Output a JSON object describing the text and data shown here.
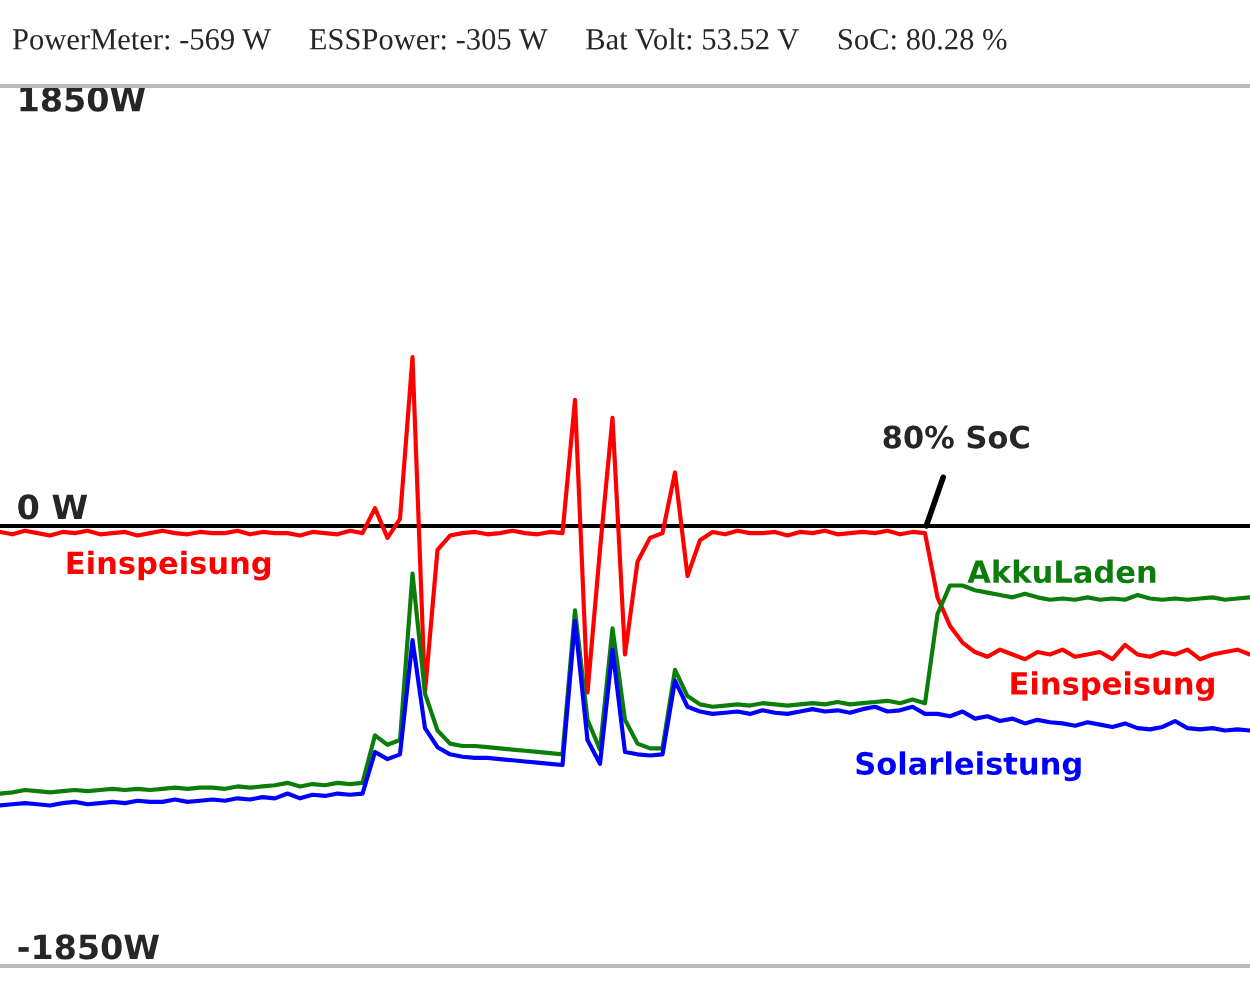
{
  "chart_data": {
    "type": "line",
    "title": "PowerMeter: -569 W     ESSPower: -305 W     Bat Volt: 53.52 V     SoC: 80.28 %",
    "categories": [
      null,
      null,
      null,
      null,
      null,
      null,
      null,
      null,
      null,
      null,
      null,
      null,
      null,
      null,
      null,
      null,
      null,
      null,
      null,
      null,
      null,
      null,
      null,
      null,
      null,
      null,
      null,
      null,
      null,
      null,
      null,
      null,
      null,
      null,
      null,
      null,
      null,
      null,
      null,
      null,
      null,
      null,
      null,
      null,
      null,
      null,
      null,
      null,
      null,
      null,
      null,
      null,
      null,
      null,
      null,
      null,
      null,
      null,
      null,
      null,
      null,
      null,
      null,
      null,
      null,
      null,
      null,
      null,
      null,
      null,
      null,
      null,
      null,
      null,
      null,
      null,
      null,
      null,
      null,
      null,
      null,
      null,
      null,
      null,
      null,
      null,
      null,
      null,
      null,
      null,
      null,
      null,
      null,
      null,
      null,
      null,
      null,
      null,
      null,
      null,
      null
    ],
    "series": [
      {
        "name": "Einspeisung",
        "color": "#ff0000",
        "values": [
          -25,
          -35,
          -20,
          -30,
          -40,
          -25,
          -30,
          -20,
          -35,
          -30,
          -25,
          -40,
          -30,
          -20,
          -30,
          -35,
          -25,
          -30,
          -30,
          -20,
          -35,
          -25,
          -30,
          -30,
          -40,
          -25,
          -30,
          -35,
          -20,
          -30,
          75,
          -50,
          30,
          710,
          -700,
          -100,
          -40,
          -30,
          -25,
          -35,
          -30,
          -20,
          -30,
          -35,
          -25,
          -30,
          530,
          -700,
          -100,
          455,
          -540,
          -150,
          -50,
          -30,
          225,
          -210,
          -60,
          -25,
          -35,
          -20,
          -30,
          -30,
          -25,
          -40,
          -25,
          -30,
          -20,
          -35,
          -30,
          -25,
          -30,
          -20,
          -35,
          -25,
          -30,
          -300,
          -420,
          -490,
          -530,
          -550,
          -520,
          -540,
          -560,
          -530,
          -540,
          -520,
          -550,
          -540,
          -530,
          -560,
          -500,
          -540,
          -550,
          -530,
          -540,
          -520,
          -560,
          -540,
          -530,
          -520,
          -540
        ]
      },
      {
        "name": "AkkuLaden",
        "color": "#0a7d0a",
        "values": [
          -1125,
          -1120,
          -1110,
          -1115,
          -1120,
          -1115,
          -1110,
          -1115,
          -1110,
          -1105,
          -1110,
          -1105,
          -1110,
          -1105,
          -1100,
          -1105,
          -1100,
          -1100,
          -1105,
          -1095,
          -1100,
          -1095,
          -1090,
          -1080,
          -1095,
          -1085,
          -1090,
          -1080,
          -1085,
          -1080,
          -880,
          -920,
          -900,
          -200,
          -705,
          -860,
          -915,
          -925,
          -925,
          -930,
          -935,
          -940,
          -945,
          -950,
          -955,
          -960,
          -355,
          -815,
          -940,
          -430,
          -815,
          -915,
          -935,
          -935,
          -605,
          -715,
          -750,
          -760,
          -755,
          -750,
          -755,
          -745,
          -750,
          -755,
          -750,
          -745,
          -750,
          -740,
          -750,
          -745,
          -740,
          -735,
          -745,
          -730,
          -745,
          -370,
          -250,
          -250,
          -270,
          -280,
          -290,
          -300,
          -285,
          -300,
          -310,
          -305,
          -310,
          -300,
          -310,
          -305,
          -310,
          -290,
          -305,
          -310,
          -305,
          -310,
          -305,
          -300,
          -310,
          -305,
          -300
        ]
      },
      {
        "name": "Solarleistung",
        "color": "#0000ff",
        "values": [
          -1175,
          -1170,
          -1165,
          -1170,
          -1175,
          -1165,
          -1160,
          -1170,
          -1165,
          -1160,
          -1165,
          -1155,
          -1160,
          -1160,
          -1150,
          -1160,
          -1155,
          -1150,
          -1155,
          -1145,
          -1150,
          -1140,
          -1145,
          -1125,
          -1145,
          -1130,
          -1135,
          -1125,
          -1130,
          -1125,
          -950,
          -980,
          -960,
          -480,
          -850,
          -930,
          -960,
          -970,
          -975,
          -975,
          -980,
          -985,
          -990,
          -995,
          -1000,
          -1005,
          -400,
          -900,
          -1000,
          -520,
          -950,
          -960,
          -965,
          -960,
          -650,
          -760,
          -780,
          -790,
          -785,
          -780,
          -790,
          -775,
          -785,
          -790,
          -780,
          -770,
          -780,
          -775,
          -785,
          -770,
          -760,
          -780,
          -775,
          -760,
          -790,
          -790,
          -800,
          -780,
          -810,
          -800,
          -820,
          -810,
          -830,
          -815,
          -825,
          -830,
          -840,
          -825,
          -835,
          -845,
          -830,
          -850,
          -855,
          -845,
          -820,
          -850,
          -855,
          -850,
          -860,
          -855,
          -860
        ]
      }
    ],
    "ylim": [
      -1850,
      1850
    ],
    "yticks": [
      {
        "value": 1850,
        "label": "1850W"
      },
      {
        "value": 0,
        "label": "0 W"
      },
      {
        "value": -1850,
        "label": "-1850W"
      }
    ],
    "tick_labels": "y",
    "ref_lines": [
      {
        "axis": "y",
        "value": 0,
        "color": "#000000"
      }
    ],
    "annotations": [
      "Einspeisung",
      {
        "text": "80% SoC",
        "y": 0
      }
    ]
  }
}
